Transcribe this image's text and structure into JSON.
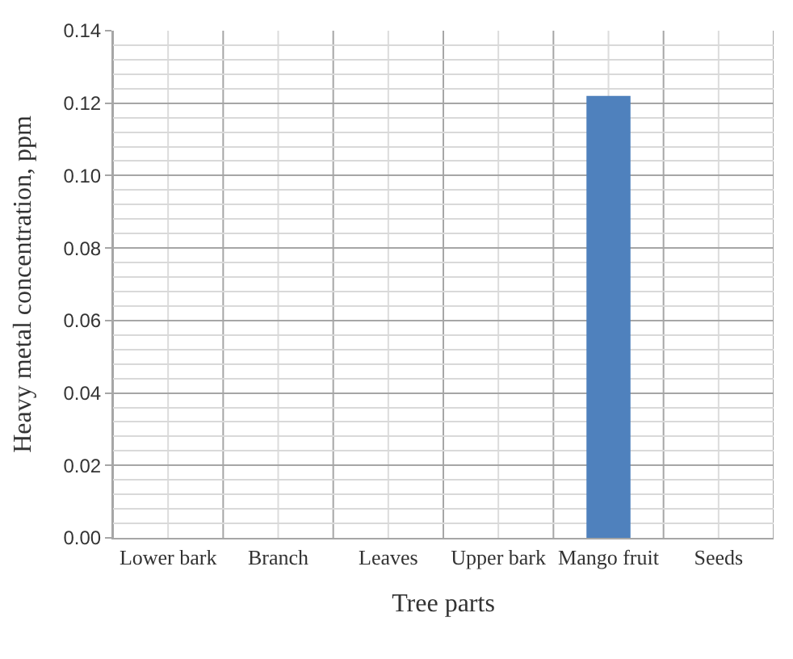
{
  "chart_data": {
    "type": "bar",
    "xlabel": "Tree parts",
    "ylabel": "Heavy metal concentration, ppm",
    "categories": [
      "Lower bark",
      "Branch",
      "Leaves",
      "Upper bark",
      "Mango fruit",
      "Seeds"
    ],
    "values": [
      0,
      0,
      0,
      0,
      0.122,
      0
    ],
    "color": "#4f81bd",
    "ylim": [
      0,
      0.14
    ],
    "yticks": [
      {
        "value": 0,
        "label": "0.00"
      },
      {
        "value": 0.02,
        "label": "0.02"
      },
      {
        "value": 0.04,
        "label": "0.04"
      },
      {
        "value": 0.06,
        "label": "0.06"
      },
      {
        "value": 0.08,
        "label": "0.08"
      },
      {
        "value": 0.1,
        "label": "0.10"
      },
      {
        "value": 0.12,
        "label": "0.12"
      },
      {
        "value": 0.14,
        "label": "0.14"
      }
    ],
    "grid": true
  }
}
